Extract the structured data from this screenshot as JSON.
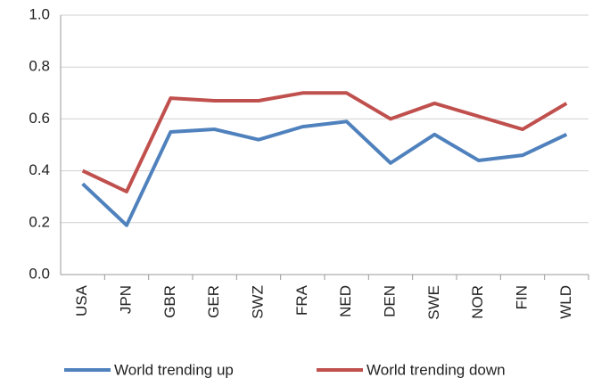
{
  "chart_data": {
    "type": "line",
    "categories": [
      "USA",
      "JPN",
      "GBR",
      "GER",
      "SWZ",
      "FRA",
      "NED",
      "DEN",
      "SWE",
      "NOR",
      "FIN",
      "WLD"
    ],
    "series": [
      {
        "name": "World trending up",
        "color": "#4f81bd",
        "values": [
          0.35,
          0.19,
          0.55,
          0.56,
          0.52,
          0.57,
          0.59,
          0.43,
          0.54,
          0.44,
          0.46,
          0.54
        ]
      },
      {
        "name": "World trending down",
        "color": "#c0504d",
        "values": [
          0.4,
          0.32,
          0.68,
          0.67,
          0.67,
          0.7,
          0.7,
          0.6,
          0.66,
          0.61,
          0.56,
          0.66
        ]
      }
    ],
    "ylim": [
      0,
      1
    ],
    "yticks": [
      {
        "value": 0,
        "label": "0.0"
      },
      0.2,
      0.4,
      0.6,
      0.8,
      {
        "value": 1,
        "label": "1.0"
      }
    ],
    "grid": true,
    "legend": "bottom"
  }
}
